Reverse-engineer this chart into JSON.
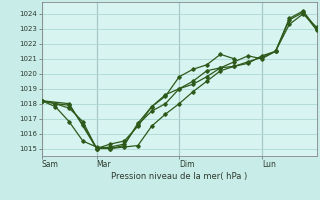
{
  "title": "Pression niveau de la mer( hPa )",
  "bg_color": "#c8ece8",
  "plot_bg_color": "#d8f4f0",
  "grid_color": "#aad8d4",
  "vline_color": "#888888",
  "line_color": "#2d5a1b",
  "marker_color": "#2d5a1b",
  "ylim": [
    1014.5,
    1024.8
  ],
  "yticks": [
    1015,
    1016,
    1017,
    1018,
    1019,
    1020,
    1021,
    1022,
    1023,
    1024
  ],
  "day_labels": [
    "Sam",
    "Mar",
    "Dim",
    "Lun"
  ],
  "day_positions": [
    0,
    48,
    120,
    192
  ],
  "xlim": [
    0,
    240
  ],
  "series1_x": [
    0,
    12,
    24,
    36,
    48,
    60,
    72,
    84,
    96,
    108,
    120,
    132,
    144,
    156,
    168,
    180,
    192,
    204,
    216,
    228,
    240
  ],
  "series1_y": [
    1018.2,
    1018.0,
    1017.9,
    1016.6,
    1015.0,
    1015.0,
    1015.1,
    1015.2,
    1016.5,
    1017.3,
    1018.0,
    1018.8,
    1019.5,
    1020.2,
    1020.5,
    1020.8,
    1021.1,
    1021.5,
    1023.6,
    1024.1,
    1022.9
  ],
  "series2_x": [
    0,
    12,
    24,
    36,
    48,
    60,
    72,
    84,
    96,
    108,
    120,
    132,
    144,
    156,
    168,
    180,
    192,
    204,
    216,
    228,
    240
  ],
  "series2_y": [
    1018.2,
    1018.0,
    1017.7,
    1016.8,
    1015.0,
    1015.1,
    1015.3,
    1016.6,
    1017.5,
    1018.0,
    1019.0,
    1019.3,
    1019.8,
    1020.4,
    1020.5,
    1020.7,
    1021.2,
    1021.5,
    1023.7,
    1024.2,
    1023.0
  ],
  "series3_x": [
    0,
    12,
    24,
    36,
    48,
    60,
    72,
    84,
    96,
    108,
    120,
    132,
    144,
    156,
    168
  ],
  "series3_y": [
    1018.2,
    1017.8,
    1016.8,
    1015.5,
    1015.1,
    1015.0,
    1015.2,
    1016.7,
    1017.8,
    1018.5,
    1019.8,
    1020.3,
    1020.6,
    1021.3,
    1021.0
  ],
  "series4_x": [
    0,
    24,
    48,
    60,
    72,
    84,
    96,
    108,
    120,
    132,
    144,
    156,
    168,
    180,
    192,
    204,
    216,
    228,
    240
  ],
  "series4_y": [
    1018.2,
    1018.0,
    1015.0,
    1015.3,
    1015.5,
    1016.5,
    1017.8,
    1018.6,
    1019.0,
    1019.5,
    1020.2,
    1020.4,
    1020.8,
    1021.2,
    1021.0,
    1021.5,
    1023.3,
    1024.0,
    1023.1
  ]
}
